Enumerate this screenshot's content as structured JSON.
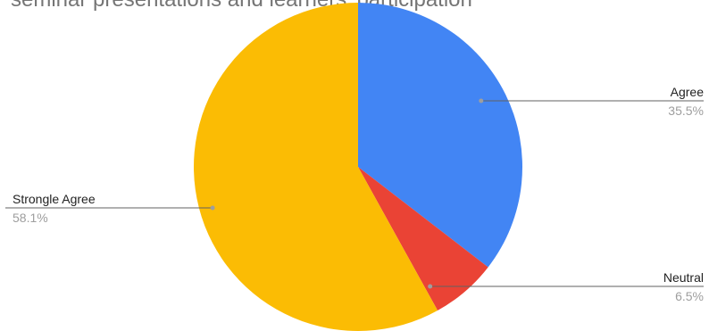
{
  "chart_data": {
    "type": "pie",
    "title": "seminar presentations and learners' participation",
    "slices": [
      {
        "label": "Agree",
        "value": 35.5,
        "value_label": "35.5%",
        "color": "#4285f4"
      },
      {
        "label": "Neutral",
        "value": 6.5,
        "value_label": "6.5%",
        "color": "#ea4335"
      },
      {
        "label": "Strongle Agree",
        "value": 58.1,
        "value_label": "58.1%",
        "color": "#fbbc04"
      }
    ],
    "legend": "none",
    "label_style": "callout"
  }
}
